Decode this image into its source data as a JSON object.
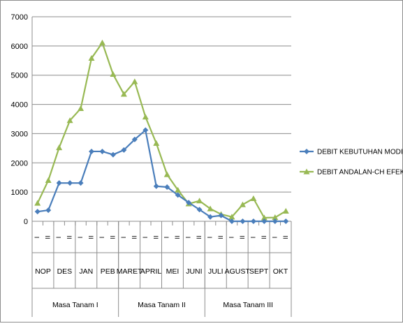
{
  "chart_data": {
    "type": "line",
    "title": "",
    "xlabel": "",
    "ylabel": "",
    "ylim": [
      0,
      7000
    ],
    "yticks": [
      0,
      1000,
      2000,
      3000,
      4000,
      5000,
      6000,
      7000
    ],
    "grid": true,
    "legend_position": "right",
    "categories": [
      "NOP-I",
      "NOP-II",
      "DES-I",
      "DES-II",
      "JAN-I",
      "JAN-II",
      "PEB-I",
      "PEB-II",
      "MARET-I",
      "MARET-II",
      "APRIL-I",
      "APRIL-II",
      "MEI-I",
      "MEI-II",
      "JUNI-I",
      "JUNI-II",
      "JULI-I",
      "JULI-II",
      "AGUST-I",
      "AGUST-II",
      "SEPT-I",
      "SEPT-II",
      "OKT-I",
      "OKT-II"
    ],
    "x_axis_levels": {
      "period": [
        "I",
        "II",
        "I",
        "II",
        "I",
        "II",
        "I",
        "II",
        "I",
        "II",
        "I",
        "II",
        "I",
        "II",
        "I",
        "II",
        "I",
        "II",
        "I",
        "II",
        "I",
        "II",
        "I",
        "II"
      ],
      "months": [
        "NOP",
        "DES",
        "JAN",
        "PEB",
        "MARET",
        "APRIL",
        "MEI",
        "JUNI",
        "JULI",
        "AGUST",
        "SEPT",
        "OKT"
      ],
      "seasons": [
        "Masa Tanam I",
        "Masa Tanam II",
        "Masa Tanam III"
      ]
    },
    "series": [
      {
        "name": "DEBIT KEBUTUHAN MODIFIKASI",
        "color": "#4a7ebb",
        "marker": "diamond",
        "values": [
          330,
          380,
          1310,
          1310,
          1310,
          2390,
          2390,
          2280,
          2440,
          2800,
          3120,
          1200,
          1170,
          900,
          640,
          400,
          150,
          200,
          0,
          0,
          0,
          0,
          0,
          0
        ]
      },
      {
        "name": "DEBIT ANDALAN-CH EFEKTIF",
        "color": "#98b954",
        "marker": "triangle",
        "values": [
          620,
          1400,
          2520,
          3450,
          3860,
          5580,
          6110,
          5030,
          4350,
          4780,
          3570,
          2670,
          1600,
          1070,
          600,
          700,
          430,
          240,
          150,
          570,
          780,
          120,
          130,
          350
        ]
      }
    ]
  }
}
